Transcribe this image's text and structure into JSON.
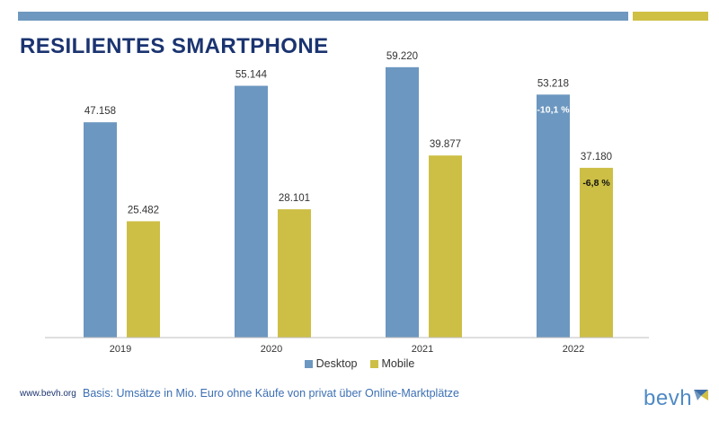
{
  "header": {
    "title": "RESILIENTES SMARTPHONE"
  },
  "colors": {
    "accent_blue": "#6e98bf",
    "accent_olive": "#cfc044",
    "title": "#1b3470"
  },
  "chart_data": {
    "type": "bar",
    "categories": [
      "2019",
      "2020",
      "2021",
      "2022"
    ],
    "series": [
      {
        "name": "Desktop",
        "color": "#6c97c0",
        "values": [
          47158,
          55144,
          59220,
          53218
        ],
        "labels": [
          "47.158",
          "55.144",
          "59.220",
          "53.218"
        ]
      },
      {
        "name": "Mobile",
        "color": "#cdbf45",
        "values": [
          25482,
          28101,
          39877,
          37180
        ],
        "labels": [
          "25.482",
          "28.101",
          "39.877",
          "37.180"
        ]
      }
    ],
    "annotations": [
      {
        "category": "2022",
        "series": "Desktop",
        "text": "-10,1 %"
      },
      {
        "category": "2022",
        "series": "Mobile",
        "text": "-6,8 %"
      }
    ],
    "ylim": [
      0,
      70000
    ],
    "grid": false,
    "legend_position": "bottom"
  },
  "footer": {
    "url": "www.bevh.org",
    "note": "Basis: Umsätze in Mio. Euro ohne Käufe von privat über Online-Marktplätze"
  },
  "logo": {
    "text": "bevh",
    "icon": "bevh-logo-mark"
  }
}
